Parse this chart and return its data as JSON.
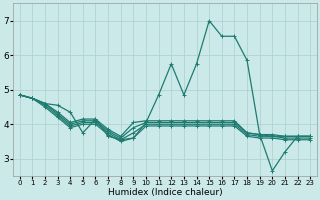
{
  "xlabel": "Humidex (Indice chaleur)",
  "xlim": [
    -0.5,
    23.5
  ],
  "ylim": [
    2.5,
    7.5
  ],
  "yticks": [
    3,
    4,
    5,
    6,
    7
  ],
  "xticks": [
    0,
    1,
    2,
    3,
    4,
    5,
    6,
    7,
    8,
    9,
    10,
    11,
    12,
    13,
    14,
    15,
    16,
    17,
    18,
    19,
    20,
    21,
    22,
    23
  ],
  "background_color": "#cce9ea",
  "grid_color": "#aacfcf",
  "line_color": "#1e7b70",
  "lines": [
    [
      4.85,
      4.75,
      4.6,
      4.55,
      4.35,
      3.75,
      4.15,
      3.65,
      3.55,
      3.6,
      4.05,
      4.85,
      5.75,
      4.85,
      5.75,
      7.0,
      6.55,
      6.55,
      5.85,
      3.7,
      2.65,
      3.2,
      3.65,
      3.65
    ],
    [
      4.85,
      4.75,
      4.6,
      4.35,
      4.05,
      4.15,
      4.15,
      3.85,
      3.65,
      4.05,
      4.1,
      4.1,
      4.1,
      4.1,
      4.1,
      4.1,
      4.1,
      4.1,
      3.75,
      3.7,
      3.7,
      3.65,
      3.65,
      3.65
    ],
    [
      4.85,
      4.75,
      4.6,
      4.3,
      4.0,
      4.1,
      4.1,
      3.8,
      3.6,
      3.9,
      4.05,
      4.05,
      4.05,
      4.05,
      4.05,
      4.05,
      4.05,
      4.05,
      3.75,
      3.7,
      3.65,
      3.65,
      3.65,
      3.65
    ],
    [
      4.85,
      4.75,
      4.55,
      4.25,
      3.95,
      4.05,
      4.05,
      3.75,
      3.55,
      3.75,
      4.0,
      4.0,
      4.0,
      4.0,
      4.0,
      4.0,
      4.0,
      4.0,
      3.7,
      3.65,
      3.65,
      3.6,
      3.6,
      3.6
    ],
    [
      4.85,
      4.75,
      4.5,
      4.2,
      3.9,
      4.0,
      4.0,
      3.7,
      3.5,
      3.6,
      3.95,
      3.95,
      3.95,
      3.95,
      3.95,
      3.95,
      3.95,
      3.95,
      3.65,
      3.6,
      3.6,
      3.55,
      3.55,
      3.55
    ]
  ],
  "marker": "+",
  "markersize": 3,
  "linewidth": 0.9,
  "xtick_fontsize": 5,
  "ytick_fontsize": 6.5,
  "xlabel_fontsize": 6.5
}
